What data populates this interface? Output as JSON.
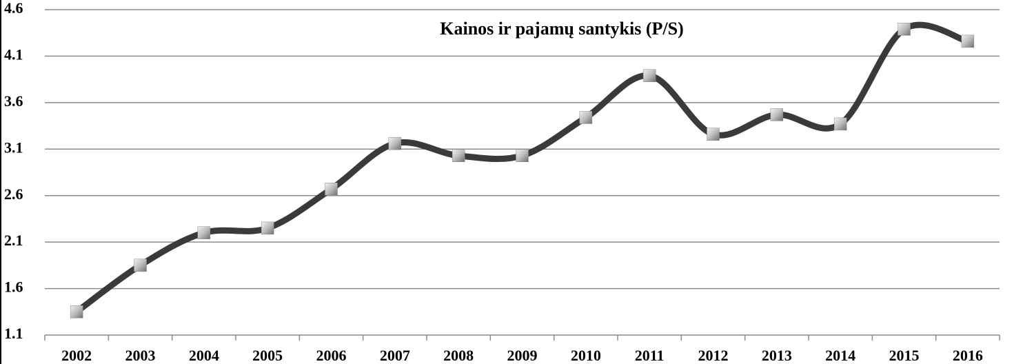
{
  "chart_data": {
    "type": "line",
    "title": "Kainos ir pajamų santykis (P/S)",
    "categories": [
      "2002",
      "2003",
      "2004",
      "2005",
      "2006",
      "2007",
      "2008",
      "2009",
      "2010",
      "2011",
      "2012",
      "2013",
      "2014",
      "2015",
      "2016"
    ],
    "series": [
      {
        "name": "P/S",
        "color": "#3a3a3a",
        "values": [
          1.35,
          1.85,
          2.2,
          2.25,
          2.67,
          3.16,
          3.03,
          3.03,
          3.44,
          3.89,
          3.26,
          3.47,
          3.37,
          4.39,
          4.26
        ]
      }
    ],
    "ylim": [
      1.1,
      4.6
    ],
    "yticks": [
      1.1,
      1.6,
      2.1,
      2.6,
      3.1,
      3.6,
      4.1,
      4.6
    ],
    "grid": true,
    "smooth": true
  }
}
